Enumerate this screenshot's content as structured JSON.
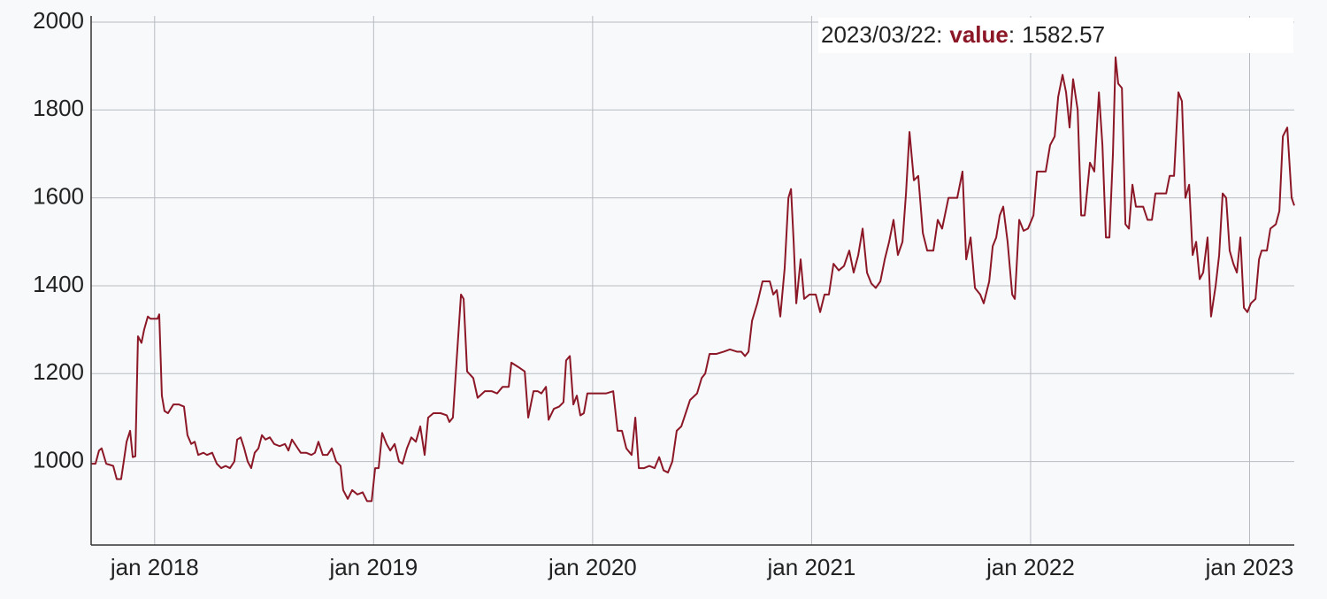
{
  "chart_data": {
    "type": "line",
    "hover_date": "2023/03/22",
    "legend_separator": ":",
    "xlim": [
      2017.71,
      2023.204
    ],
    "ylim": [
      810,
      2010
    ],
    "xticks": [
      {
        "value": 2018,
        "label": "jan 2018"
      },
      {
        "value": 2019,
        "label": "jan 2019"
      },
      {
        "value": 2020,
        "label": "jan 2020"
      },
      {
        "value": 2021,
        "label": "jan 2021"
      },
      {
        "value": 2022,
        "label": "jan 2022"
      },
      {
        "value": 2023,
        "label": "jan 2023"
      }
    ],
    "yticks": [
      1000,
      1200,
      1400,
      1600,
      1800,
      2000
    ],
    "grid": true,
    "x": [
      2017.71,
      2017.73,
      2017.746,
      2017.758,
      2017.779,
      2017.811,
      2017.827,
      2017.847,
      2017.859,
      2017.872,
      2017.888,
      2017.9,
      2017.912,
      2017.924,
      2017.94,
      2017.952,
      2017.969,
      2017.981,
      2018.013,
      2018.021,
      2018.033,
      2018.045,
      2018.061,
      2018.086,
      2018.11,
      2018.134,
      2018.15,
      2018.167,
      2018.183,
      2018.199,
      2018.223,
      2018.239,
      2018.263,
      2018.284,
      2018.304,
      2018.324,
      2018.344,
      2018.364,
      2018.377,
      2018.393,
      2018.409,
      2018.425,
      2018.441,
      2018.457,
      2018.474,
      2018.49,
      2018.506,
      2018.526,
      2018.546,
      2018.571,
      2018.595,
      2018.611,
      2018.627,
      2018.647,
      2018.667,
      2018.692,
      2018.716,
      2018.732,
      2018.748,
      2018.768,
      2018.789,
      2018.809,
      2018.829,
      2018.849,
      2018.861,
      2018.882,
      2018.902,
      2018.926,
      2018.95,
      2018.97,
      2018.991,
      2019.007,
      2019.023,
      2019.039,
      2019.059,
      2019.076,
      2019.096,
      2019.116,
      2019.132,
      2019.152,
      2019.172,
      2019.193,
      2019.213,
      2019.233,
      2019.249,
      2019.273,
      2019.306,
      2019.334,
      2019.346,
      2019.362,
      2019.379,
      2019.399,
      2019.411,
      2019.427,
      2019.455,
      2019.475,
      2019.508,
      2019.54,
      2019.564,
      2019.589,
      2019.617,
      2019.629,
      2019.661,
      2019.69,
      2019.706,
      2019.73,
      2019.75,
      2019.766,
      2019.787,
      2019.799,
      2019.823,
      2019.847,
      2019.867,
      2019.879,
      2019.896,
      2019.912,
      2019.928,
      2019.944,
      2019.96,
      2019.976,
      2020.009,
      2020.061,
      2020.094,
      2020.114,
      2020.134,
      2020.154,
      2020.178,
      2020.195,
      2020.211,
      2020.235,
      2020.259,
      2020.283,
      2020.304,
      2020.324,
      2020.344,
      2020.364,
      2020.384,
      2020.405,
      2020.425,
      2020.445,
      2020.477,
      2020.498,
      2020.514,
      2020.534,
      2020.566,
      2020.599,
      2020.627,
      2020.659,
      2020.679,
      2020.696,
      2020.712,
      2020.728,
      2020.752,
      2020.776,
      2020.809,
      2020.825,
      2020.841,
      2020.857,
      2020.877,
      2020.894,
      2020.906,
      2020.918,
      2020.93,
      2020.95,
      2020.966,
      2020.99,
      2021.019,
      2021.039,
      2021.059,
      2021.079,
      2021.1,
      2021.124,
      2021.148,
      2021.172,
      2021.192,
      2021.213,
      2021.233,
      2021.253,
      2021.273,
      2021.293,
      2021.314,
      2021.334,
      2021.354,
      2021.374,
      2021.394,
      2021.415,
      2021.431,
      2021.447,
      2021.467,
      2021.487,
      2021.508,
      2021.528,
      2021.556,
      2021.576,
      2021.596,
      2021.625,
      2021.665,
      2021.689,
      2021.706,
      2021.726,
      2021.746,
      2021.77,
      2021.786,
      2021.811,
      2021.827,
      2021.843,
      2021.859,
      2021.875,
      2021.895,
      2021.916,
      2021.928,
      2021.948,
      2021.968,
      2021.988,
      2022.013,
      2022.029,
      2022.069,
      2022.089,
      2022.11,
      2022.126,
      2022.146,
      2022.162,
      2022.178,
      2022.194,
      2022.215,
      2022.231,
      2022.247,
      2022.271,
      2022.291,
      2022.312,
      2022.328,
      2022.344,
      2022.36,
      2022.376,
      2022.388,
      2022.4,
      2022.417,
      2022.433,
      2022.449,
      2022.465,
      2022.481,
      2022.514,
      2022.534,
      2022.554,
      2022.57,
      2022.619,
      2022.635,
      2022.655,
      2022.675,
      2022.691,
      2022.707,
      2022.724,
      2022.74,
      2022.756,
      2022.772,
      2022.788,
      2022.808,
      2022.824,
      2022.845,
      2022.861,
      2022.877,
      2022.893,
      2022.909,
      2022.926,
      2022.942,
      2022.958,
      2022.974,
      2022.99,
      2023.006,
      2023.027,
      2023.043,
      2023.055,
      2023.079,
      2023.095,
      2023.12,
      2023.136,
      2023.152,
      2023.172,
      2023.192,
      2023.204
    ],
    "series": [
      {
        "name": "value",
        "color": "#8c1726",
        "values": [
          995,
          995,
          1025,
          1030,
          995,
          990,
          960,
          960,
          1000,
          1045,
          1070,
          1010,
          1012,
          1285,
          1270,
          1300,
          1330,
          1325,
          1325,
          1335,
          1150,
          1115,
          1110,
          1130,
          1130,
          1125,
          1060,
          1040,
          1045,
          1015,
          1020,
          1015,
          1020,
          995,
          985,
          990,
          985,
          1000,
          1050,
          1055,
          1030,
          1000,
          985,
          1020,
          1030,
          1060,
          1050,
          1055,
          1040,
          1035,
          1040,
          1025,
          1050,
          1035,
          1020,
          1020,
          1015,
          1020,
          1045,
          1015,
          1015,
          1030,
          1000,
          990,
          935,
          915,
          935,
          925,
          930,
          910,
          910,
          985,
          985,
          1065,
          1040,
          1025,
          1040,
          1000,
          995,
          1030,
          1055,
          1045,
          1080,
          1015,
          1100,
          1110,
          1110,
          1105,
          1090,
          1100,
          1230,
          1380,
          1370,
          1205,
          1190,
          1145,
          1160,
          1160,
          1155,
          1170,
          1170,
          1225,
          1215,
          1205,
          1100,
          1160,
          1160,
          1155,
          1170,
          1095,
          1120,
          1125,
          1135,
          1230,
          1240,
          1130,
          1150,
          1105,
          1110,
          1155,
          1155,
          1155,
          1160,
          1070,
          1070,
          1030,
          1015,
          1100,
          985,
          985,
          990,
          985,
          1010,
          980,
          975,
          1000,
          1070,
          1080,
          1110,
          1140,
          1155,
          1190,
          1200,
          1245,
          1245,
          1250,
          1255,
          1250,
          1250,
          1240,
          1250,
          1320,
          1360,
          1410,
          1410,
          1380,
          1390,
          1330,
          1440,
          1600,
          1620,
          1500,
          1360,
          1460,
          1370,
          1380,
          1380,
          1340,
          1380,
          1380,
          1450,
          1435,
          1445,
          1480,
          1430,
          1470,
          1530,
          1430,
          1405,
          1395,
          1410,
          1460,
          1500,
          1550,
          1470,
          1500,
          1610,
          1750,
          1640,
          1650,
          1520,
          1480,
          1480,
          1550,
          1530,
          1600,
          1600,
          1660,
          1460,
          1510,
          1395,
          1380,
          1360,
          1410,
          1490,
          1510,
          1560,
          1580,
          1500,
          1380,
          1370,
          1550,
          1525,
          1530,
          1560,
          1660,
          1660,
          1720,
          1740,
          1830,
          1880,
          1840,
          1760,
          1870,
          1800,
          1560,
          1560,
          1680,
          1660,
          1840,
          1720,
          1510,
          1510,
          1700,
          1920,
          1860,
          1850,
          1540,
          1530,
          1630,
          1580,
          1580,
          1550,
          1550,
          1610,
          1610,
          1650,
          1650,
          1840,
          1820,
          1600,
          1630,
          1470,
          1500,
          1415,
          1430,
          1510,
          1330,
          1400,
          1470,
          1610,
          1600,
          1480,
          1450,
          1430,
          1510,
          1350,
          1340,
          1360,
          1370,
          1460,
          1480,
          1480,
          1530,
          1540,
          1570,
          1740,
          1760,
          1600,
          1582.57
        ]
      }
    ]
  }
}
